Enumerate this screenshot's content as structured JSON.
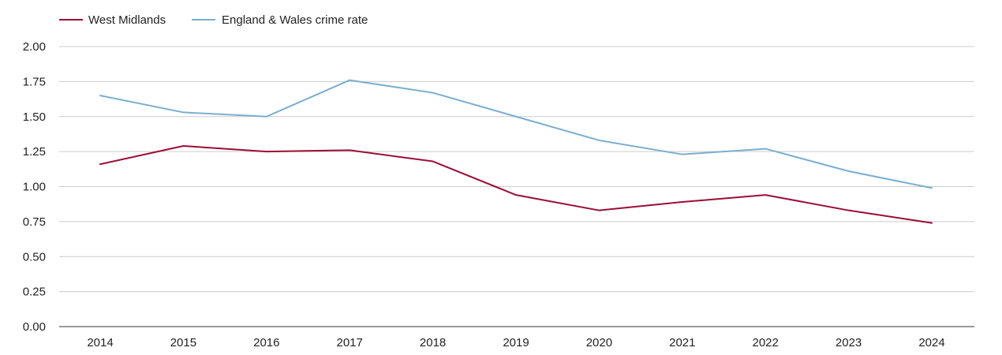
{
  "colors": {
    "west_midlands": "#9b0d35",
    "england_wales": "#7aaed0"
  },
  "chart_data": {
    "type": "line",
    "title": "",
    "xlabel": "",
    "ylabel": "",
    "x": [
      "2014",
      "2015",
      "2016",
      "2017",
      "2018",
      "2019",
      "2020",
      "2021",
      "2022",
      "2023",
      "2024"
    ],
    "ylim": [
      0,
      2
    ],
    "yticks": [
      "0.00",
      "0.25",
      "0.50",
      "0.75",
      "1.00",
      "1.25",
      "1.50",
      "1.75",
      "2.00"
    ],
    "grid": true,
    "legend_position": "top-left",
    "series": [
      {
        "name": "West Midlands",
        "color": "#9b0d35",
        "values": [
          1.16,
          1.29,
          1.25,
          1.26,
          1.18,
          0.94,
          0.83,
          0.89,
          0.94,
          0.83,
          0.74
        ]
      },
      {
        "name": "England & Wales crime rate",
        "color": "#7aaed0",
        "values": [
          1.65,
          1.53,
          1.5,
          1.76,
          1.67,
          1.5,
          1.33,
          1.23,
          1.27,
          1.11,
          0.99
        ]
      }
    ]
  }
}
